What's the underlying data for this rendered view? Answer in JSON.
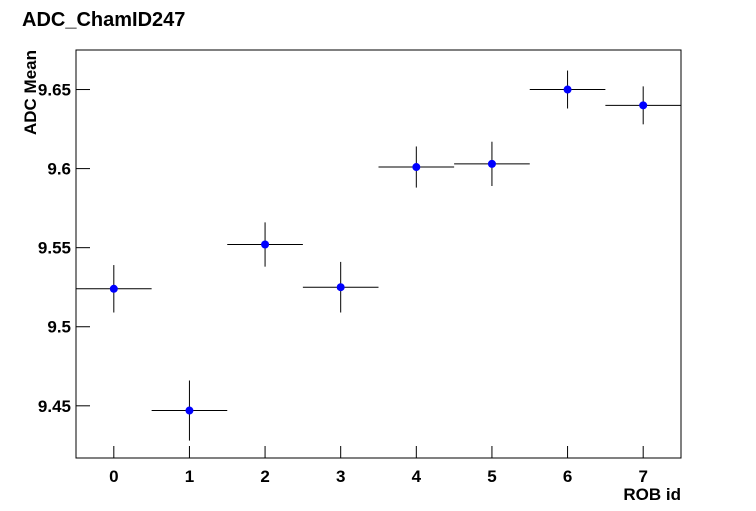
{
  "chart_data": {
    "type": "errorbar",
    "title": "ADC_ChamID247",
    "x_label": "ROB id",
    "y_label": "ADC Mean",
    "x": [
      0,
      1,
      2,
      3,
      4,
      5,
      6,
      7
    ],
    "values": [
      9.524,
      9.447,
      9.552,
      9.525,
      9.601,
      9.603,
      9.65,
      9.64
    ],
    "errors": [
      0.015,
      0.019,
      0.014,
      0.016,
      0.013,
      0.014,
      0.012,
      0.012
    ],
    "x_errors": [
      0.5,
      0.5,
      0.5,
      0.5,
      0.5,
      0.5,
      0.5,
      0.5
    ],
    "color": "#0000ff",
    "xlim": [
      -0.5,
      7.5
    ],
    "xticks": [
      0,
      1,
      2,
      3,
      4,
      5,
      6,
      7
    ],
    "ylim": [
      9.417,
      9.675
    ],
    "yticks": [
      9.45,
      9.5,
      9.55,
      9.6,
      9.65
    ]
  }
}
